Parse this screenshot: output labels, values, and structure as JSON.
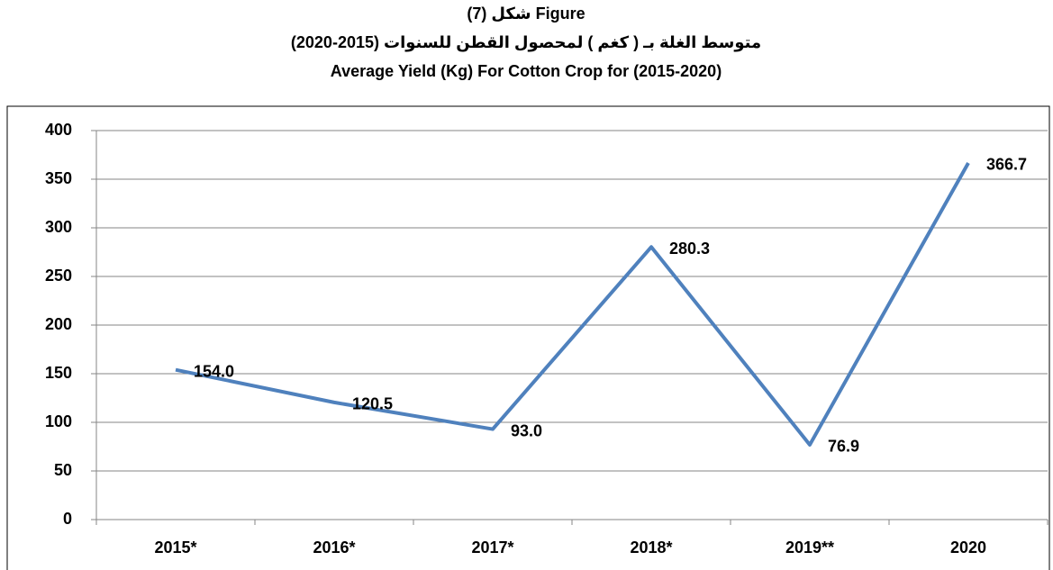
{
  "chart_data": {
    "type": "line",
    "title": "شكل (7) Figure",
    "subtitle": [
      "متوسط الغلة بـ ( كغم ) لمحصول القطن للسنوات (2015-2020)",
      "Average Yield (Kg) For Cotton Crop  for (2015-2020)"
    ],
    "categories": [
      "2015*",
      "2016*",
      "2017*",
      "2018*",
      "2019**",
      "2020"
    ],
    "values": [
      154,
      120.5,
      93,
      280.3,
      76.9,
      366.7
    ],
    "value_labels": [
      "154.0",
      "120.5",
      "93.0",
      "280.3",
      "76.9",
      "366.7"
    ],
    "color": "#4f81bd",
    "ylim": [
      0,
      400
    ],
    "yticks": [
      0,
      50,
      100,
      150,
      200,
      250,
      300,
      350,
      400
    ],
    "grid": true
  }
}
